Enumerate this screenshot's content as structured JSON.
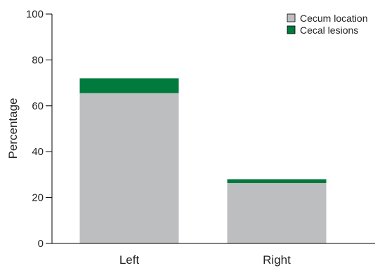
{
  "chart_data": {
    "type": "bar",
    "stacked": true,
    "categories": [
      "Left",
      "Right"
    ],
    "series": [
      {
        "name": "Cecum location",
        "values": [
          65.5,
          26.3
        ],
        "color": "#BCBEC0"
      },
      {
        "name": "Cecal lesions",
        "values": [
          6.5,
          1.7
        ],
        "color": "#007A3D"
      }
    ],
    "xlabel": "",
    "ylabel": "Percentage",
    "ylim": [
      0,
      100
    ],
    "yticks": [
      0,
      20,
      40,
      60,
      80,
      100
    ],
    "grid": false,
    "legend": "top-right"
  }
}
